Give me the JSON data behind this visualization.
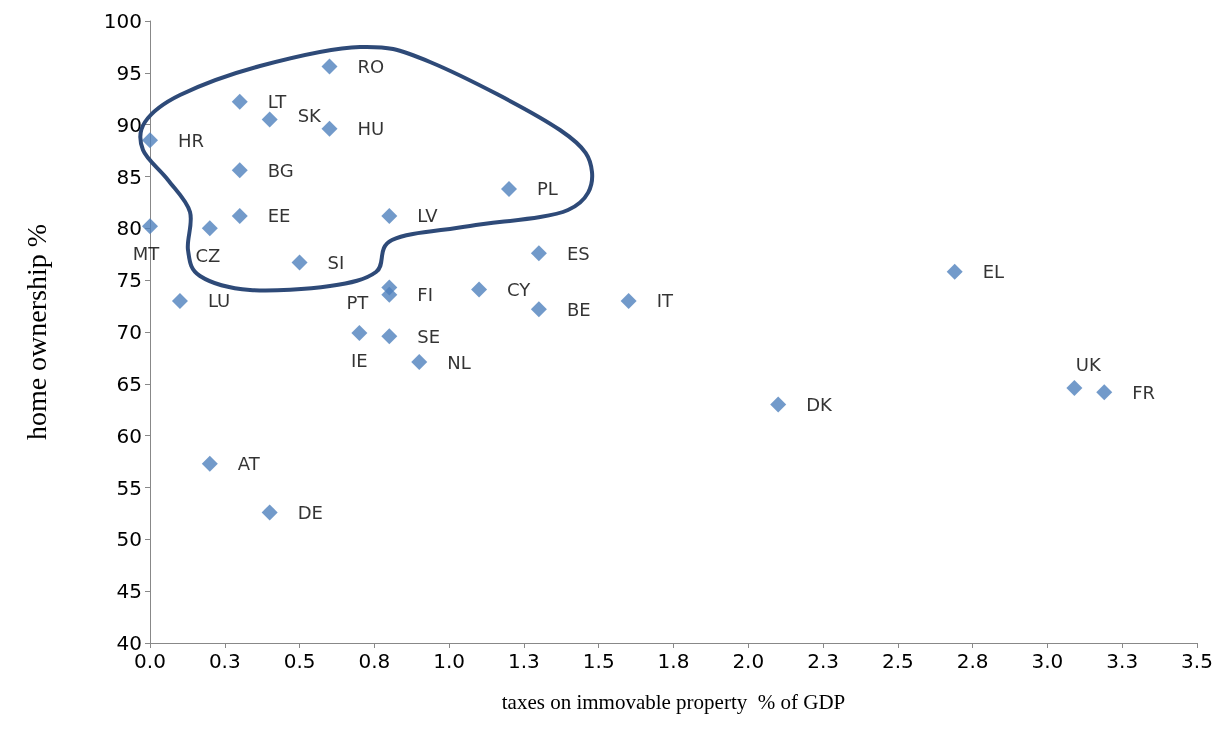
{
  "chart_data": {
    "type": "scatter",
    "xlabel": "taxes on immovable property  % of GDP",
    "ylabel": "home ownership %",
    "x": [
      0.6,
      0.3,
      0.4,
      0.6,
      0,
      0.3,
      1.2,
      0.3,
      0.8,
      0,
      0.2,
      1.3,
      0.5,
      2.69,
      0.8,
      0.8,
      1.1,
      0.1,
      1.6,
      1.3,
      0.7,
      0.8,
      0.9,
      3.09,
      3.19,
      2.1,
      0.2,
      0.4
    ],
    "values": [
      95.6,
      92.2,
      90.5,
      89.6,
      88.5,
      85.6,
      83.8,
      81.2,
      81.2,
      80.2,
      80.0,
      77.6,
      76.7,
      75.8,
      74.3,
      73.6,
      74.1,
      73.0,
      73.0,
      72.2,
      69.9,
      69.6,
      67.1,
      64.6,
      64.2,
      63.0,
      57.3,
      52.6
    ],
    "value_labels": [
      "RO",
      "LT",
      "SK",
      "HU",
      "HR",
      "BG",
      "PL",
      "EE",
      "LV",
      "MT",
      "CZ",
      "ES",
      "SI",
      "EL",
      "PT",
      "FI",
      "CY",
      "LU",
      "IT",
      "BE",
      "IE",
      "SE",
      "NL",
      "UK",
      "FR",
      "DK",
      "AT",
      "DE"
    ],
    "color": "#4f81bd",
    "marker": "diamond",
    "xlim": [
      0,
      3.5
    ],
    "xticks": [
      {
        "value": 0,
        "label": "0.0"
      },
      {
        "value": 0.25,
        "label": "0.3"
      },
      {
        "value": 0.5,
        "label": "0.5"
      },
      {
        "value": 0.75,
        "label": "0.8"
      },
      {
        "value": 1,
        "label": "1.0"
      },
      {
        "value": 1.25,
        "label": "1.3"
      },
      {
        "value": 1.5,
        "label": "1.5"
      },
      {
        "value": 1.75,
        "label": "1.8"
      },
      {
        "value": 2,
        "label": "2.0"
      },
      {
        "value": 2.25,
        "label": "2.3"
      },
      {
        "value": 2.5,
        "label": "2.5"
      },
      {
        "value": 2.75,
        "label": "2.8"
      },
      {
        "value": 3,
        "label": "3.0"
      },
      {
        "value": 3.25,
        "label": "3.3"
      },
      {
        "value": 3.5,
        "label": "3.5"
      }
    ],
    "ylim": [
      40,
      100
    ],
    "yticks": [
      40,
      45,
      50,
      55,
      60,
      65,
      70,
      75,
      80,
      85,
      90,
      95,
      100
    ]
  }
}
